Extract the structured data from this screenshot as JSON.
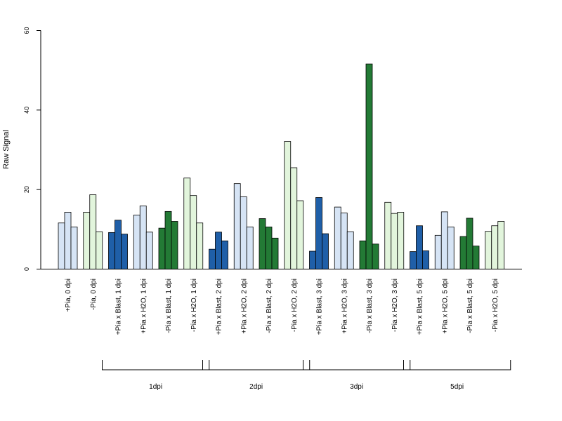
{
  "chart_data": {
    "type": "bar",
    "ylabel": "Raw Signal",
    "ylim": [
      0,
      60
    ],
    "yticks": [
      0,
      20,
      40,
      60
    ],
    "grid": false,
    "categories": [
      "+Pia, 0 dpi",
      "-Pia, 0 dpi",
      "+Pia x Blast, 1 dpi",
      "+Pia x H2O, 1 dpi",
      "-Pia x Blast, 1 dpi",
      "-Pia x H2O, 1 dpi",
      "+Pia x Blast, 2 dpi",
      "+Pia x H2O, 2 dpi",
      "-Pia x Blast, 2 dpi",
      "-Pia x H2O, 2 dpi",
      "+Pia x Blast, 3 dpi",
      "+Pia x H2O, 3 dpi",
      "-Pia x Blast, 3 dpi",
      "-Pia x H2O, 3 dpi",
      "+Pia x Blast, 5 dpi",
      "+Pia x H2O, 5 dpi",
      "-Pia x Blast, 5 dpi",
      "-Pia x H2O, 5 dpi"
    ],
    "category_colors": [
      "#d6e4f5",
      "#e2f5dc",
      "#1f5fa8",
      "#d6e4f5",
      "#237a35",
      "#e2f5dc",
      "#1f5fa8",
      "#d6e4f5",
      "#237a35",
      "#e2f5dc",
      "#1f5fa8",
      "#d6e4f5",
      "#237a35",
      "#e2f5dc",
      "#1f5fa8",
      "#d6e4f5",
      "#237a35",
      "#e2f5dc"
    ],
    "values": [
      [
        11.6,
        14.3,
        10.6
      ],
      [
        14.3,
        18.7,
        9.4
      ],
      [
        9.2,
        12.3,
        8.8
      ],
      [
        13.6,
        15.9,
        9.3
      ],
      [
        10.3,
        14.5,
        12.0
      ],
      [
        22.9,
        18.5,
        11.6
      ],
      [
        5.0,
        9.3,
        7.1
      ],
      [
        21.5,
        18.2,
        10.6
      ],
      [
        12.7,
        10.6,
        7.8
      ],
      [
        32.1,
        25.5,
        17.2
      ],
      [
        4.5,
        18.0,
        8.9
      ],
      [
        15.6,
        14.1,
        9.4
      ],
      [
        7.1,
        51.6,
        6.3
      ],
      [
        16.8,
        14.0,
        14.3
      ],
      [
        4.4,
        10.9,
        4.6
      ],
      [
        8.5,
        14.4,
        10.6
      ],
      [
        8.2,
        12.8,
        5.8
      ],
      [
        9.5,
        10.9,
        12.0
      ]
    ],
    "groups": [
      {
        "label": "1dpi",
        "categories": [
          2,
          5
        ]
      },
      {
        "label": "2dpi",
        "categories": [
          6,
          9
        ]
      },
      {
        "label": "3dpi",
        "categories": [
          10,
          13
        ]
      },
      {
        "label": "5dpi",
        "categories": [
          14,
          17
        ]
      }
    ]
  }
}
